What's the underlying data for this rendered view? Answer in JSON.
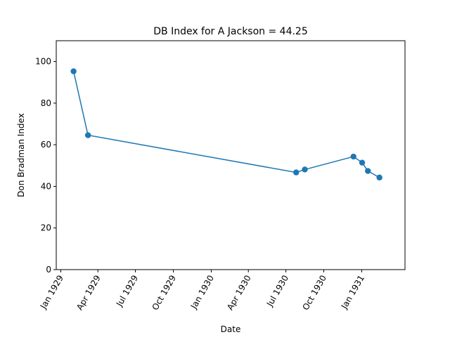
{
  "chart_data": {
    "type": "line",
    "title": "DB Index for A Jackson = 44.25",
    "xlabel": "Date",
    "ylabel": "Don Bradman Index",
    "ylim": [
      0,
      110
    ],
    "xlim": [
      "1928-12-21",
      "1931-04-16"
    ],
    "yticks": [
      0,
      20,
      40,
      60,
      80,
      100
    ],
    "xticks": [
      {
        "date": "1929-01-01",
        "label": "Jan 1929"
      },
      {
        "date": "1929-04-01",
        "label": "Apr 1929"
      },
      {
        "date": "1929-07-01",
        "label": "Jul 1929"
      },
      {
        "date": "1929-10-01",
        "label": "Oct 1929"
      },
      {
        "date": "1930-01-01",
        "label": "Jan 1930"
      },
      {
        "date": "1930-04-01",
        "label": "Apr 1930"
      },
      {
        "date": "1930-07-01",
        "label": "Jul 1930"
      },
      {
        "date": "1930-10-01",
        "label": "Oct 1930"
      },
      {
        "date": "1931-01-01",
        "label": "Jan 1931"
      }
    ],
    "grid": false,
    "series": [
      {
        "color": "#1f77b4",
        "x": [
          "1929-02-01",
          "1929-03-08",
          "1930-07-26",
          "1930-08-16",
          "1930-12-12",
          "1931-01-02",
          "1931-01-16",
          "1931-02-13"
        ],
        "y": [
          95.3,
          64.6,
          46.7,
          48.1,
          54.3,
          51.4,
          47.4,
          44.25
        ]
      }
    ]
  }
}
